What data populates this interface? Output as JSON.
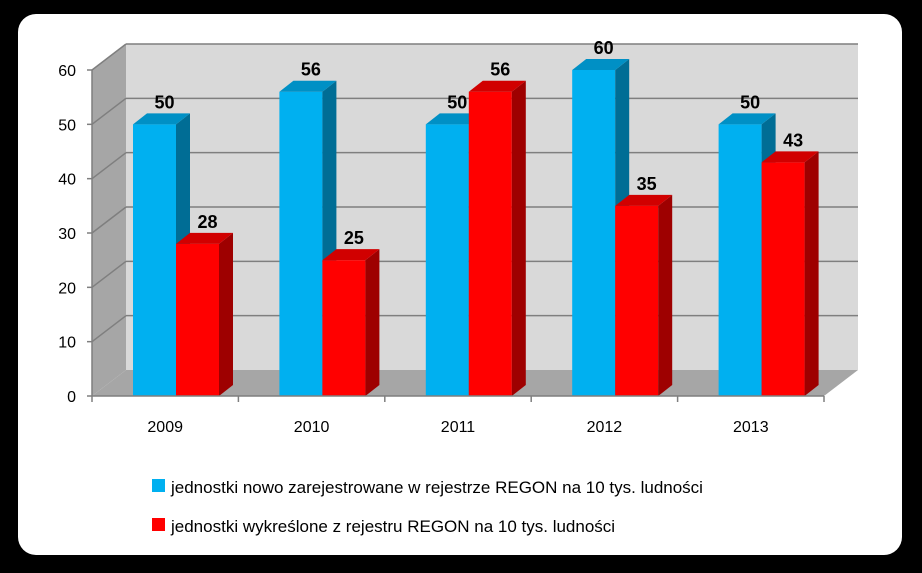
{
  "chart_data": {
    "type": "bar",
    "categories": [
      "2009",
      "2010",
      "2011",
      "2012",
      "2013"
    ],
    "series": [
      {
        "name": "jednostki nowo zarejestrowane w rejestrze REGON na 10 tys. ludności",
        "values": [
          50,
          56,
          50,
          60,
          50
        ],
        "color": "#00B0F0"
      },
      {
        "name": "jednostki wykreślone z rejestru REGON na 10 tys. ludności",
        "values": [
          28,
          25,
          56,
          35,
          43
        ],
        "color": "#FF0000"
      }
    ],
    "ylim": [
      0,
      60
    ],
    "yticks": [
      0,
      10,
      20,
      30,
      40,
      50,
      60
    ],
    "grid": true,
    "legend_position": "bottom",
    "style": "3d-clustered-column"
  }
}
